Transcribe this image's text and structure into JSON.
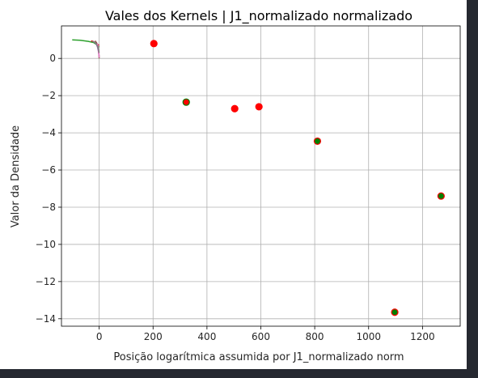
{
  "chart_data": {
    "type": "scatter",
    "title": "Vales dos Kernels | J1_normalizado normalizado",
    "xlabel": "Posição logarítmica assumida por J1_normalizado norm",
    "ylabel": "Valor da Densidade",
    "xlim": [
      -140,
      1340
    ],
    "ylim": [
      -14.4,
      1.75
    ],
    "xticks": [
      0,
      200,
      400,
      600,
      800,
      1000,
      1200
    ],
    "yticks": [
      0,
      -2,
      -4,
      -6,
      -8,
      -10,
      -12,
      -14
    ],
    "grid": true,
    "points": [
      {
        "x": 203,
        "y": 0.8,
        "fill": "#ff0000",
        "edge": "#ff0000"
      },
      {
        "x": 323,
        "y": -2.35,
        "fill": "#ff0000",
        "edge": "#008000"
      },
      {
        "x": 503,
        "y": -2.7,
        "fill": "#ff0000",
        "edge": "#ff0000"
      },
      {
        "x": 593,
        "y": -2.6,
        "fill": "#ff0000",
        "edge": "#ff0000"
      },
      {
        "x": 810,
        "y": -4.45,
        "fill": "#008000",
        "edge": "#ff0000"
      },
      {
        "x": 1269,
        "y": -7.4,
        "fill": "#008000",
        "edge": "#ff0000"
      },
      {
        "x": 1097,
        "y": -13.65,
        "fill": "#008000",
        "edge": "#ff0000"
      }
    ],
    "kernel_lines": [
      {
        "color": "#2ca02c",
        "x": [
          -100,
          -70,
          -40,
          -20,
          -10,
          0
        ],
        "y": [
          1.0,
          0.98,
          0.92,
          0.85,
          0.75,
          0.6
        ]
      },
      {
        "color": "#d62728",
        "x": [
          -30,
          -20,
          -15,
          -10,
          -5,
          0
        ],
        "y": [
          0.95,
          0.9,
          0.85,
          0.8,
          0.75,
          0.7
        ]
      },
      {
        "color": "#9467bd",
        "x": [
          -20,
          -15,
          -10,
          -6,
          -3,
          0
        ],
        "y": [
          0.9,
          0.85,
          0.75,
          0.6,
          0.4,
          0.1
        ]
      },
      {
        "color": "#8c564b",
        "x": [
          -15,
          -10,
          -5,
          -3,
          -1,
          0
        ],
        "y": [
          0.95,
          0.85,
          0.7,
          0.5,
          0.25,
          0.0
        ]
      },
      {
        "color": "#e377c2",
        "x": [
          -8,
          -5,
          -3,
          -1,
          0
        ],
        "y": [
          0.8,
          0.7,
          0.5,
          0.2,
          0.05
        ]
      },
      {
        "color": "#7f7f7f",
        "x": [
          -25,
          -18,
          -12,
          -6,
          -2,
          0
        ],
        "y": [
          0.92,
          0.88,
          0.8,
          0.65,
          0.45,
          0.3
        ]
      }
    ]
  }
}
